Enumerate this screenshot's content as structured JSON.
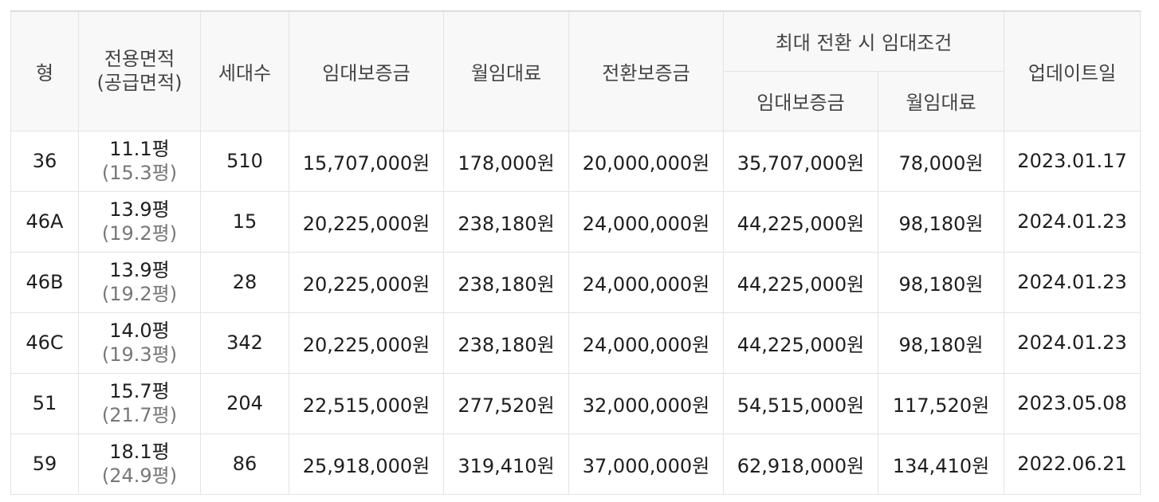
{
  "header": {
    "type": "형",
    "area_line1": "전용면적",
    "area_line2": "(공급면적)",
    "households": "세대수",
    "deposit": "임대보증금",
    "monthly": "월임대료",
    "conversion_deposit": "전환보증금",
    "max_group": "최대 전환 시 임대조건",
    "max_deposit": "임대보증금",
    "max_monthly": "월임대료",
    "updated": "업데이트일"
  },
  "rows": [
    {
      "type": "36",
      "area": "11.1평",
      "supply": "(15.3평)",
      "households": "510",
      "deposit": "15,707,000원",
      "monthly": "178,000원",
      "conversion": "20,000,000원",
      "max_deposit": "35,707,000원",
      "max_monthly": "78,000원",
      "updated": "2023.01.17"
    },
    {
      "type": "46A",
      "area": "13.9평",
      "supply": "(19.2평)",
      "households": "15",
      "deposit": "20,225,000원",
      "monthly": "238,180원",
      "conversion": "24,000,000원",
      "max_deposit": "44,225,000원",
      "max_monthly": "98,180원",
      "updated": "2024.01.23"
    },
    {
      "type": "46B",
      "area": "13.9평",
      "supply": "(19.2평)",
      "households": "28",
      "deposit": "20,225,000원",
      "monthly": "238,180원",
      "conversion": "24,000,000원",
      "max_deposit": "44,225,000원",
      "max_monthly": "98,180원",
      "updated": "2024.01.23"
    },
    {
      "type": "46C",
      "area": "14.0평",
      "supply": "(19.3평)",
      "households": "342",
      "deposit": "20,225,000원",
      "monthly": "238,180원",
      "conversion": "24,000,000원",
      "max_deposit": "44,225,000원",
      "max_monthly": "98,180원",
      "updated": "2024.01.23"
    },
    {
      "type": "51",
      "area": "15.7평",
      "supply": "(21.7평)",
      "households": "204",
      "deposit": "22,515,000원",
      "monthly": "277,520원",
      "conversion": "32,000,000원",
      "max_deposit": "54,515,000원",
      "max_monthly": "117,520원",
      "updated": "2023.05.08"
    },
    {
      "type": "59",
      "area": "18.1평",
      "supply": "(24.9평)",
      "households": "86",
      "deposit": "25,918,000원",
      "monthly": "319,410원",
      "conversion": "37,000,000원",
      "max_deposit": "62,918,000원",
      "max_monthly": "134,410원",
      "updated": "2022.06.21"
    }
  ]
}
